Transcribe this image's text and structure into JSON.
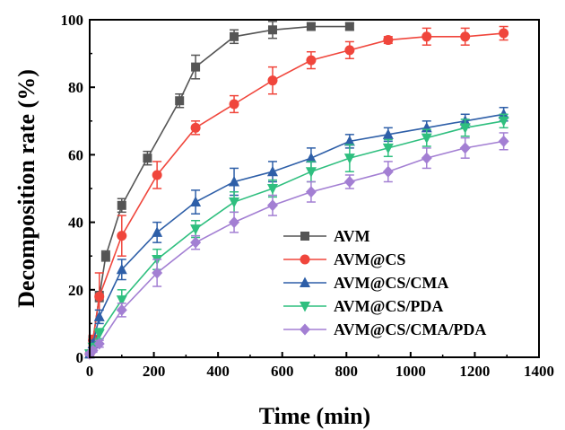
{
  "chart_data": {
    "type": "line",
    "xlabel": "Time (min)",
    "ylabel": "Decomposition rate (%)",
    "xlim": [
      0,
      1400
    ],
    "ylim": [
      0,
      100
    ],
    "xticks": [
      "0",
      "200",
      "400",
      "600",
      "800",
      "1000",
      "1200",
      "1400"
    ],
    "yticks": [
      "0",
      "20",
      "40",
      "60",
      "80",
      "100"
    ],
    "legend_position": "lower-right",
    "series": [
      {
        "name": "AVM",
        "color": "#555555",
        "marker": "square",
        "x": [
          0,
          10,
          30,
          50,
          100,
          180,
          280,
          330,
          450,
          570,
          690,
          810
        ],
        "y": [
          1,
          5,
          18,
          30,
          45,
          59,
          76,
          86,
          95,
          97,
          98,
          98
        ],
        "err": [
          0.5,
          1,
          1.5,
          1.5,
          2,
          2,
          2,
          3.5,
          2,
          2.5,
          1,
          1
        ]
      },
      {
        "name": "AVM@CS",
        "color": "#f0463c",
        "marker": "circle",
        "x": [
          0,
          10,
          30,
          100,
          210,
          330,
          450,
          570,
          690,
          810,
          930,
          1050,
          1170,
          1290
        ],
        "y": [
          1,
          5,
          18,
          36,
          54,
          68,
          75,
          82,
          88,
          91,
          94,
          95,
          95,
          96
        ],
        "err": [
          0.5,
          1.5,
          7,
          6,
          4,
          2,
          2.5,
          4,
          2.5,
          2.5,
          1,
          2.5,
          2.5,
          2
        ]
      },
      {
        "name": "AVM@CS/CMA",
        "color": "#2e5fa8",
        "marker": "triangle-up",
        "x": [
          0,
          10,
          30,
          100,
          210,
          330,
          450,
          570,
          690,
          810,
          930,
          1050,
          1170,
          1290
        ],
        "y": [
          1,
          4,
          12,
          26,
          37,
          46,
          52,
          55,
          59,
          64,
          66,
          68,
          70,
          72
        ],
        "err": [
          0.5,
          1,
          2,
          3,
          3,
          3.5,
          4,
          3,
          3,
          2,
          2,
          2,
          2,
          2
        ]
      },
      {
        "name": "AVM@CS/PDA",
        "color": "#2fbf7f",
        "marker": "triangle-down",
        "x": [
          0,
          10,
          30,
          100,
          210,
          330,
          450,
          570,
          690,
          810,
          930,
          1050,
          1170,
          1290
        ],
        "y": [
          1,
          3,
          7,
          17,
          29,
          38,
          46,
          50,
          55,
          59,
          62,
          65,
          68,
          70
        ],
        "err": [
          0.5,
          1,
          1.5,
          3,
          3,
          2.5,
          3,
          2.5,
          3,
          4,
          2.5,
          2.5,
          2.5,
          2
        ]
      },
      {
        "name": "AVM@CS/CMA/PDA",
        "color": "#a37fd3",
        "marker": "diamond",
        "x": [
          0,
          10,
          30,
          100,
          210,
          330,
          450,
          570,
          690,
          810,
          930,
          1050,
          1170,
          1290
        ],
        "y": [
          1,
          2,
          4,
          14,
          25,
          34,
          40,
          45,
          49,
          52,
          55,
          59,
          62,
          64
        ],
        "err": [
          0.5,
          0.5,
          1,
          2,
          4,
          2,
          3,
          3,
          3,
          2,
          3,
          3,
          3,
          2.5
        ]
      }
    ]
  }
}
